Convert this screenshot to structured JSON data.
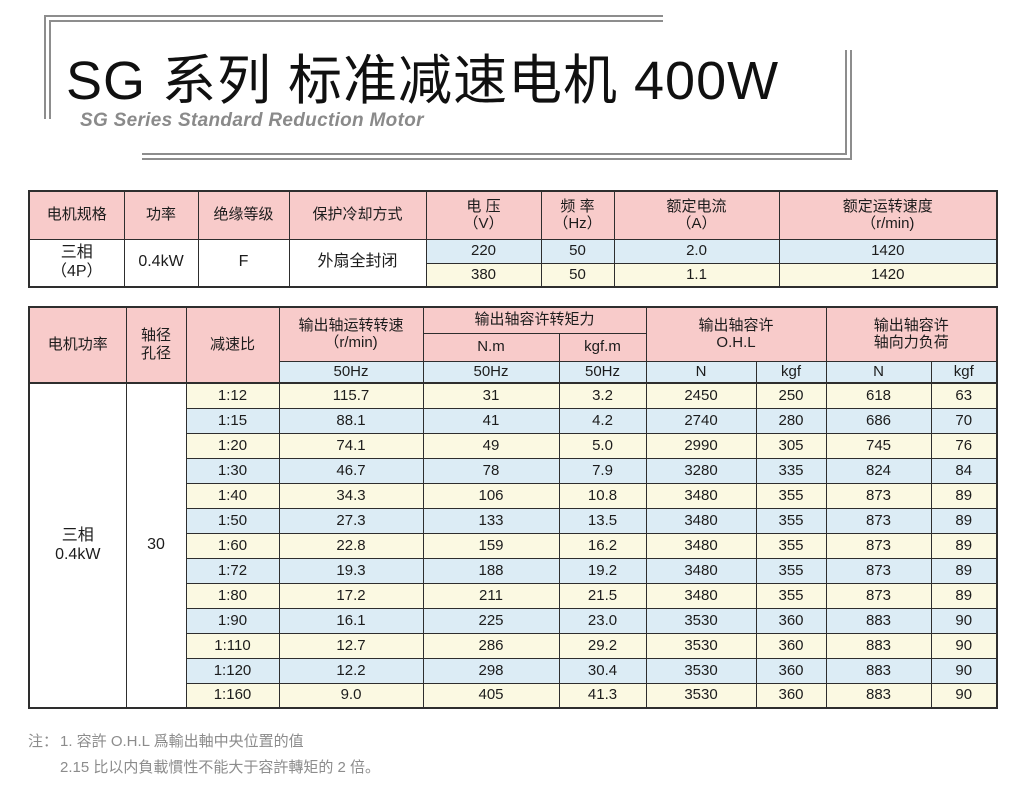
{
  "title": {
    "main": "SG 系列 标准减速电机 400W",
    "subtitle": "SG Series Standard Reduction Motor"
  },
  "colors": {
    "header_pink": "#f8cbca",
    "row_blue": "#dcecf5",
    "row_cream": "#fbf9e2",
    "border_dark": "#2e2e2e",
    "frame_gray": "#8d8d8d"
  },
  "spec_table": {
    "headers": {
      "motor_spec": "电机规格",
      "power": "功率",
      "insulation": "绝缘等级",
      "cooling": "保护冷却方式",
      "voltage": "电 压\n（V）",
      "frequency": "频 率\n（Hz）",
      "rated_current": "额定电流\n（A）",
      "rated_speed": "额定运转速度\n（r/min)"
    },
    "left_cells": {
      "motor_spec": "三相\n（4P）",
      "power": "0.4kW",
      "insulation": "F",
      "cooling": "外扇全封闭"
    },
    "rows": [
      {
        "voltage": "220",
        "frequency": "50",
        "current": "2.0",
        "speed": "1420"
      },
      {
        "voltage": "380",
        "frequency": "50",
        "current": "1.1",
        "speed": "1420"
      }
    ]
  },
  "ratio_table": {
    "headers": {
      "motor_power": "电机功率",
      "shaft": "轴径\n孔径",
      "ratio": "减速比",
      "output_speed": "输出轴运转转速\n（r/min)",
      "allow_torque": "输出轴容许转矩力",
      "torque_nm": "N.m",
      "torque_kgfm": "kgf.m",
      "ohl": "输出轴容许\nO.H.L",
      "axial": "输出轴容许\n轴向力负荷",
      "hz50": "50Hz",
      "n": "N",
      "kgf": "kgf"
    },
    "left_cells": {
      "motor_power": "三相\n0.4kW",
      "shaft": "30"
    },
    "rows": [
      [
        "1:12",
        "115.7",
        "31",
        "3.2",
        "2450",
        "250",
        "618",
        "63"
      ],
      [
        "1:15",
        "88.1",
        "41",
        "4.2",
        "2740",
        "280",
        "686",
        "70"
      ],
      [
        "1:20",
        "74.1",
        "49",
        "5.0",
        "2990",
        "305",
        "745",
        "76"
      ],
      [
        "1:30",
        "46.7",
        "78",
        "7.9",
        "3280",
        "335",
        "824",
        "84"
      ],
      [
        "1:40",
        "34.3",
        "106",
        "10.8",
        "3480",
        "355",
        "873",
        "89"
      ],
      [
        "1:50",
        "27.3",
        "133",
        "13.5",
        "3480",
        "355",
        "873",
        "89"
      ],
      [
        "1:60",
        "22.8",
        "159",
        "16.2",
        "3480",
        "355",
        "873",
        "89"
      ],
      [
        "1:72",
        "19.3",
        "188",
        "19.2",
        "3480",
        "355",
        "873",
        "89"
      ],
      [
        "1:80",
        "17.2",
        "211",
        "21.5",
        "3480",
        "355",
        "873",
        "89"
      ],
      [
        "1:90",
        "16.1",
        "225",
        "23.0",
        "3530",
        "360",
        "883",
        "90"
      ],
      [
        "1:110",
        "12.7",
        "286",
        "29.2",
        "3530",
        "360",
        "883",
        "90"
      ],
      [
        "1:120",
        "12.2",
        "298",
        "30.4",
        "3530",
        "360",
        "883",
        "90"
      ],
      [
        "1:160",
        "9.0",
        "405",
        "41.3",
        "3530",
        "360",
        "883",
        "90"
      ]
    ]
  },
  "notes": {
    "label": "注：",
    "lines": [
      "1. 容許 O.H.L 爲輸出軸中央位置的值",
      "2.15 比以内負載慣性不能大于容許轉矩的 2 倍。"
    ]
  }
}
